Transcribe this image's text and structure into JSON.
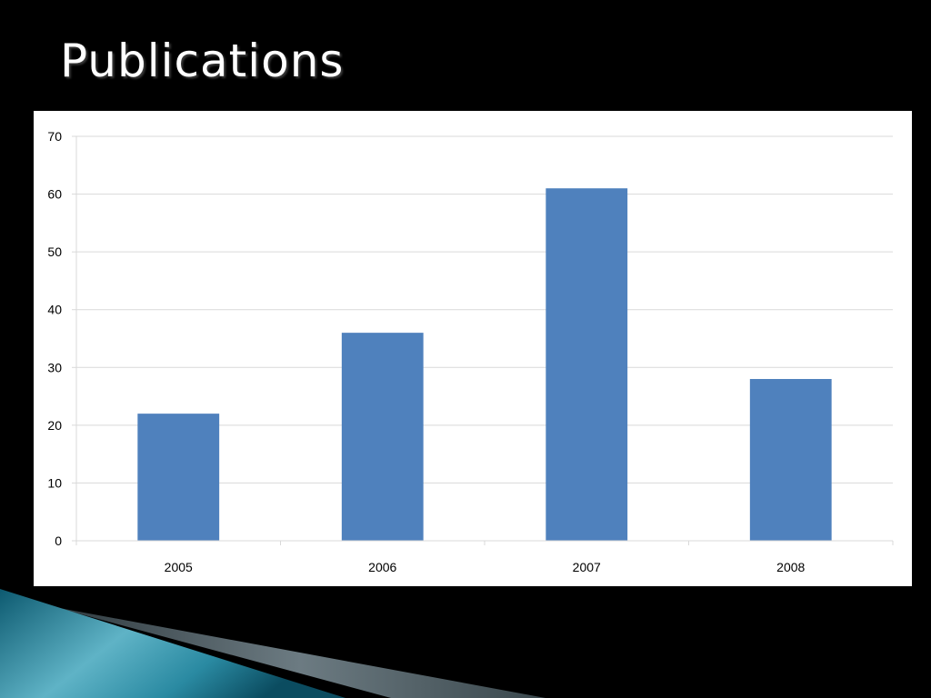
{
  "slide": {
    "title": "Publications"
  },
  "colors": {
    "background": "#000000",
    "bar": "#4f81bd",
    "grid": "#d9d9d9",
    "axis": "#d9d9d9",
    "decor_teal": "#1b7a90",
    "decor_gray": "#5b6b72"
  },
  "chart_data": {
    "type": "bar",
    "categories": [
      "2005",
      "2006",
      "2007",
      "2008"
    ],
    "values": [
      22,
      36,
      61,
      28
    ],
    "title": "",
    "xlabel": "",
    "ylabel": "",
    "ylim": [
      0,
      70
    ],
    "yticks": [
      0,
      10,
      20,
      30,
      40,
      50,
      60,
      70
    ],
    "grid": true,
    "legend": "none"
  }
}
